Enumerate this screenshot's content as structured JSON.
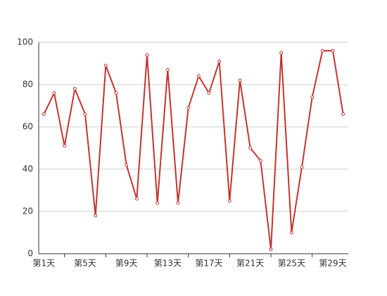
{
  "chart_data": {
    "type": "line",
    "categories": [
      "第1天",
      null,
      null,
      null,
      "第5天",
      null,
      null,
      null,
      "第9天",
      null,
      null,
      null,
      "第13天",
      null,
      null,
      null,
      "第17天",
      null,
      null,
      null,
      "第21天",
      null,
      null,
      null,
      "第25天",
      null,
      null,
      null,
      "第29天",
      null
    ],
    "values": [
      66,
      76,
      51,
      78,
      66,
      18,
      89,
      76,
      42,
      26,
      94,
      24,
      87,
      24,
      69,
      84,
      76,
      91,
      25,
      82,
      50,
      44,
      2,
      95,
      10,
      41,
      74,
      96,
      96,
      66
    ],
    "color": "#c23531",
    "ylim": [
      0,
      100
    ],
    "yticks": [
      0,
      20,
      40,
      60,
      80,
      100
    ],
    "grid": true
  }
}
